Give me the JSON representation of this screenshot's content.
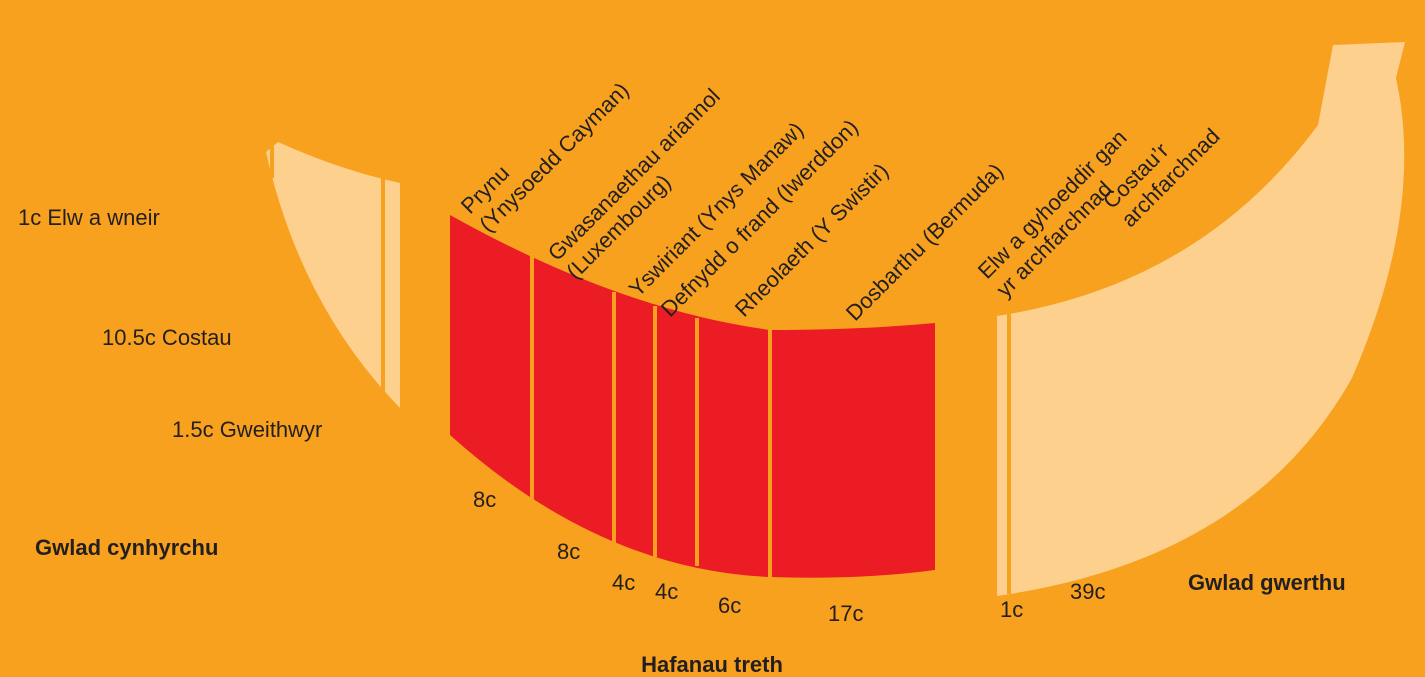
{
  "producing": {
    "label": "Gwlad cynhyrchu",
    "items": [
      "1c Elw a wneir",
      "10.5c Costau",
      "1.5c Gweithwyr"
    ]
  },
  "havens": {
    "label": "Hafanau treth",
    "segments": [
      {
        "name": [
          "Prynu",
          "(Ynysoedd Cayman)"
        ],
        "amount": "8c"
      },
      {
        "name": [
          "Gwasanaethau ariannol",
          "(Luxembourg)"
        ],
        "amount": "8c"
      },
      {
        "name": [
          "Yswiriant (Ynys Manaw)"
        ],
        "amount": "4c"
      },
      {
        "name": [
          "Defnydd o frand (Iwerddon)"
        ],
        "amount": "4c"
      },
      {
        "name": [
          "Rheolaeth (Y Swistir)"
        ],
        "amount": "6c"
      },
      {
        "name": [
          "Dosbarthu (Bermuda)"
        ],
        "amount": "17c"
      }
    ]
  },
  "selling": {
    "label": "Gwlad gwerthu",
    "segments": [
      {
        "name": [
          "Elw a gyhoeddir gan",
          "yr archfarchnad"
        ],
        "amount": "1c"
      },
      {
        "name": [
          "Costau’r",
          "archfarchnad"
        ],
        "amount": "39c"
      }
    ]
  }
}
